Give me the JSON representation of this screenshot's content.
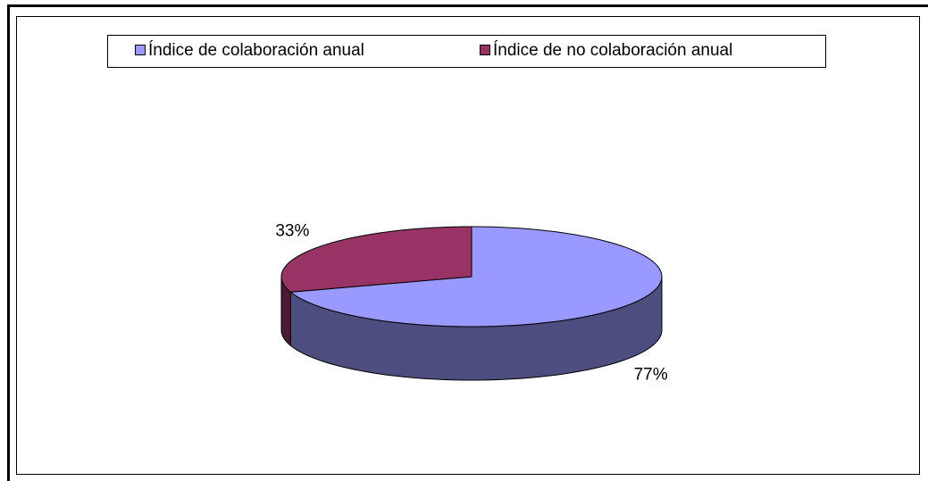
{
  "chart_data": {
    "type": "pie3d",
    "categories": [
      "Índice de colaboración anual",
      "Índice de no colaboración anual"
    ],
    "values": [
      77,
      33
    ],
    "value_labels": [
      "77%",
      "33%"
    ],
    "colors": [
      "#9999ff",
      "#993366"
    ],
    "legend": "top"
  }
}
